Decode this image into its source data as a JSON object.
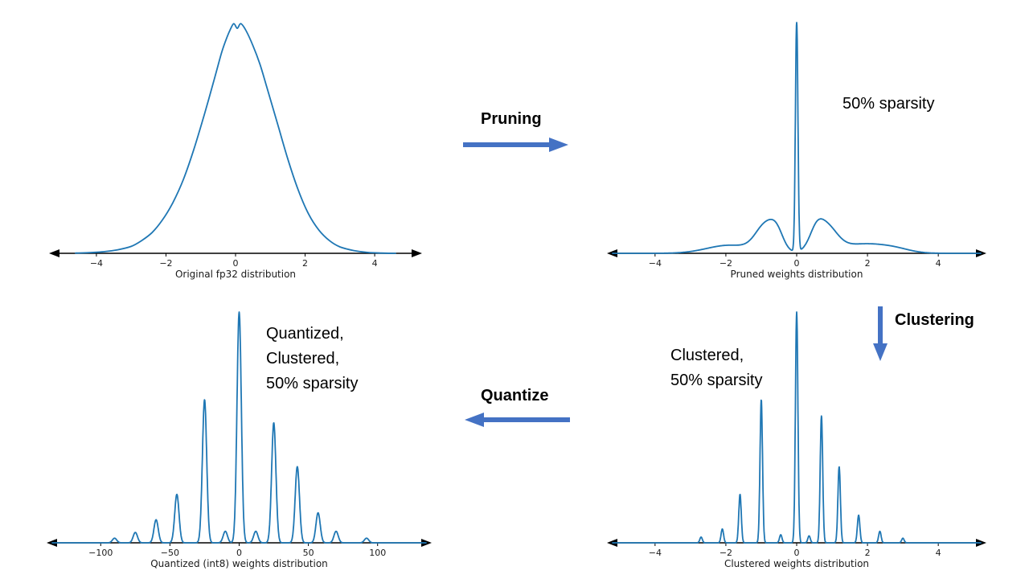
{
  "colors": {
    "curve": "#1f77b4",
    "arrow": "#4472c4",
    "axis": "#000000"
  },
  "annotations": {
    "pruning_label": "Pruning",
    "clustering_label": "Clustering",
    "quantize_label": "Quantize",
    "sparsity_note": "50% sparsity",
    "clustered_note_lines": [
      "Clustered,",
      "50% sparsity"
    ],
    "quantized_note_lines": [
      "Quantized,",
      "Clustered,",
      "50% sparsity"
    ]
  },
  "chart_data": [
    {
      "id": "original",
      "type": "line",
      "xlabel": "Original fp32 distribution",
      "xlim": [
        -5.2,
        5.2
      ],
      "xticks": [
        -4,
        -2,
        0,
        2,
        4
      ],
      "ylim": [
        0,
        1
      ],
      "points": [
        [
          -4.6,
          0.001
        ],
        [
          -4.2,
          0.003
        ],
        [
          -3.8,
          0.007
        ],
        [
          -3.4,
          0.015
        ],
        [
          -3.0,
          0.03
        ],
        [
          -2.7,
          0.055
        ],
        [
          -2.4,
          0.09
        ],
        [
          -2.1,
          0.145
        ],
        [
          -1.8,
          0.22
        ],
        [
          -1.5,
          0.32
        ],
        [
          -1.2,
          0.45
        ],
        [
          -0.9,
          0.6
        ],
        [
          -0.6,
          0.76
        ],
        [
          -0.4,
          0.87
        ],
        [
          -0.25,
          0.935
        ],
        [
          -0.15,
          0.97
        ],
        [
          -0.05,
          0.995
        ],
        [
          0.05,
          0.975
        ],
        [
          0.15,
          0.995
        ],
        [
          0.3,
          0.965
        ],
        [
          0.5,
          0.9
        ],
        [
          0.7,
          0.82
        ],
        [
          0.9,
          0.72
        ],
        [
          1.2,
          0.565
        ],
        [
          1.5,
          0.41
        ],
        [
          1.8,
          0.275
        ],
        [
          2.1,
          0.17
        ],
        [
          2.4,
          0.1
        ],
        [
          2.7,
          0.055
        ],
        [
          3.0,
          0.028
        ],
        [
          3.4,
          0.012
        ],
        [
          3.8,
          0.004
        ],
        [
          4.2,
          0.001
        ],
        [
          4.6,
          0.0
        ]
      ]
    },
    {
      "id": "pruned",
      "type": "line",
      "xlabel": "Pruned weights distribution",
      "xlim": [
        -5.2,
        5.2
      ],
      "xticks": [
        -4,
        -2,
        0,
        2,
        4
      ],
      "ylim": [
        0,
        1
      ],
      "spike_width": 0.05,
      "spikes": [
        [
          -1.9,
          0.035,
          0.9
        ],
        [
          -0.85,
          0.12,
          0.42
        ],
        [
          -0.55,
          0.05,
          0.25
        ],
        [
          0,
          1.0,
          0.05
        ],
        [
          0.55,
          0.045,
          0.25
        ],
        [
          0.8,
          0.115,
          0.45
        ],
        [
          1.9,
          0.04,
          0.95
        ],
        [
          2.8,
          0.012,
          0.6
        ]
      ]
    },
    {
      "id": "clustered",
      "type": "line",
      "xlabel": "Clustered weights distribution",
      "xlim": [
        -5.2,
        5.2
      ],
      "xticks": [
        -4,
        -2,
        0,
        2,
        4
      ],
      "ylim": [
        0,
        1
      ],
      "spike_width": 0.05,
      "spikes": [
        [
          -2.7,
          0.025
        ],
        [
          -2.1,
          0.06
        ],
        [
          -1.6,
          0.21
        ],
        [
          -1.0,
          0.62
        ],
        [
          -0.45,
          0.035
        ],
        [
          0,
          1.0
        ],
        [
          0.35,
          0.03
        ],
        [
          0.7,
          0.55
        ],
        [
          1.2,
          0.33
        ],
        [
          1.75,
          0.12
        ],
        [
          2.35,
          0.05
        ],
        [
          3.0,
          0.02
        ]
      ]
    },
    {
      "id": "quantized",
      "type": "line",
      "xlabel": "Quantized (int8) weights distribution",
      "xlim": [
        -135,
        135
      ],
      "xticks": [
        -100,
        -50,
        0,
        50,
        100
      ],
      "ylim": [
        0,
        1
      ],
      "spike_width": 2.2,
      "spikes": [
        [
          -90,
          0.02
        ],
        [
          -75,
          0.045
        ],
        [
          -60,
          0.1
        ],
        [
          -45,
          0.21
        ],
        [
          -25,
          0.62
        ],
        [
          -10,
          0.05
        ],
        [
          0,
          1.0
        ],
        [
          12,
          0.05
        ],
        [
          25,
          0.52
        ],
        [
          42,
          0.33
        ],
        [
          57,
          0.13
        ],
        [
          70,
          0.05
        ],
        [
          92,
          0.02
        ]
      ]
    }
  ]
}
